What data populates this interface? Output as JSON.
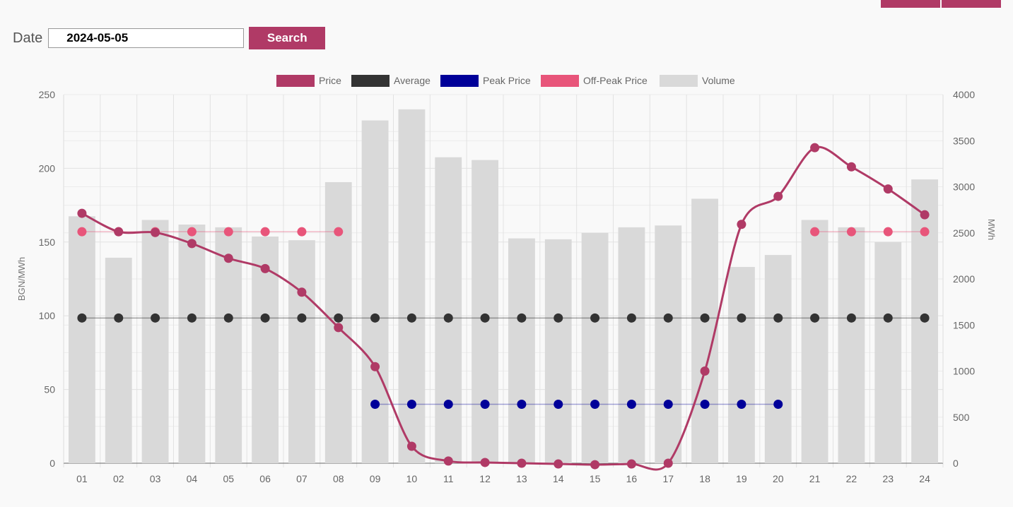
{
  "form": {
    "date_label": "Date",
    "date_value": "2024-05-05",
    "search_label": "Search"
  },
  "colors": {
    "accent": "#b03a66",
    "price": "#b03a66",
    "average": "#333333",
    "peak": "#000099",
    "offpeak": "#e8557a",
    "volume": "#d9d9d9"
  },
  "chart_data": {
    "type": "bar",
    "categories": [
      "01",
      "02",
      "03",
      "04",
      "05",
      "06",
      "07",
      "08",
      "09",
      "10",
      "11",
      "12",
      "13",
      "14",
      "15",
      "16",
      "17",
      "18",
      "19",
      "20",
      "21",
      "22",
      "23",
      "24"
    ],
    "legend_position": "top",
    "grid": true,
    "y_left": {
      "label": "BGN/MWh",
      "range": [
        0,
        250
      ],
      "ticks": [
        0,
        50,
        100,
        150,
        200,
        250
      ]
    },
    "y_right": {
      "label": "MWh",
      "range": [
        0,
        4000
      ],
      "ticks": [
        0,
        500,
        1000,
        1500,
        2000,
        2500,
        3000,
        3500,
        4000
      ]
    },
    "series": [
      {
        "name": "Price",
        "type": "line",
        "axis": "left",
        "color": "#b03a66",
        "values": [
          169.5,
          157,
          156.5,
          149,
          139,
          132,
          116,
          92,
          65.5,
          11.5,
          1.5,
          0.5,
          0,
          -0.5,
          -1,
          -0.5,
          0,
          62.5,
          162,
          181,
          214,
          201,
          186,
          168.5
        ]
      },
      {
        "name": "Average",
        "type": "point-line",
        "axis": "left",
        "color": "#333333",
        "values": [
          98.5,
          98.5,
          98.5,
          98.5,
          98.5,
          98.5,
          98.5,
          98.5,
          98.5,
          98.5,
          98.5,
          98.5,
          98.5,
          98.5,
          98.5,
          98.5,
          98.5,
          98.5,
          98.5,
          98.5,
          98.5,
          98.5,
          98.5,
          98.5
        ]
      },
      {
        "name": "Peak Price",
        "type": "point-line",
        "axis": "left",
        "color": "#000099",
        "values": [
          null,
          null,
          null,
          null,
          null,
          null,
          null,
          null,
          40,
          40,
          40,
          40,
          40,
          40,
          40,
          40,
          40,
          40,
          40,
          40,
          null,
          null,
          null,
          null
        ]
      },
      {
        "name": "Off-Peak Price",
        "type": "point-line",
        "axis": "left",
        "color": "#e8557a",
        "values": [
          157,
          157,
          157,
          157,
          157,
          157,
          157,
          157,
          null,
          null,
          null,
          null,
          null,
          null,
          null,
          null,
          null,
          null,
          null,
          null,
          157,
          157,
          157,
          157
        ]
      },
      {
        "name": "Volume",
        "type": "bar",
        "axis": "right",
        "color": "#d9d9d9",
        "values": [
          2680,
          2230,
          2640,
          2590,
          2560,
          2460,
          2420,
          3050,
          3720,
          3840,
          3320,
          3290,
          2440,
          2430,
          2500,
          2560,
          2580,
          2870,
          2130,
          2260,
          2640,
          2560,
          2400,
          3080
        ]
      }
    ]
  }
}
